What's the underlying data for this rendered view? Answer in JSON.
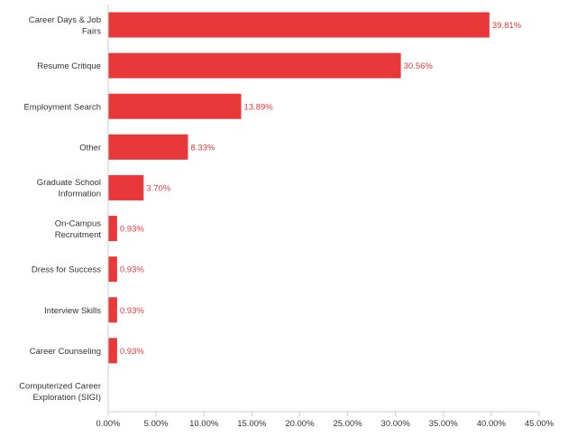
{
  "chart_data": {
    "type": "bar",
    "orientation": "horizontal",
    "title": "",
    "xlabel": "",
    "ylabel": "",
    "categories": [
      [
        "Career Days & Job",
        "Fairs"
      ],
      [
        "Resume Critique"
      ],
      [
        "Employment Search"
      ],
      [
        "Other"
      ],
      [
        "Graduate School",
        "Information"
      ],
      [
        "On-Campus",
        "Recruitment"
      ],
      [
        "Dress for Success"
      ],
      [
        "Interview Skills"
      ],
      [
        "Career Counseling"
      ],
      [
        "Computerized Career",
        "Exploration (SIGI)"
      ]
    ],
    "values": [
      39.81,
      30.56,
      13.89,
      8.33,
      3.7,
      0.93,
      0.93,
      0.93,
      0.93,
      0
    ],
    "value_labels": [
      "39.81%",
      "30.56%",
      "13.89%",
      "8.33%",
      "3.70%",
      "0.93%",
      "0.93%",
      "0.93%",
      "0.93%",
      ""
    ],
    "xlim": [
      0,
      45
    ],
    "xticks": [
      0,
      5,
      10,
      15,
      20,
      25,
      30,
      35,
      40,
      45
    ],
    "xtick_labels": [
      "0.00%",
      "5.00%",
      "10.00%",
      "15.00%",
      "20.00%",
      "25.00%",
      "30.00%",
      "35.00%",
      "40.00%",
      "45.00%"
    ],
    "grid": false,
    "bar_color": "#e8383a",
    "label_color": "#e8383a",
    "axis_color": "#cccccc"
  }
}
